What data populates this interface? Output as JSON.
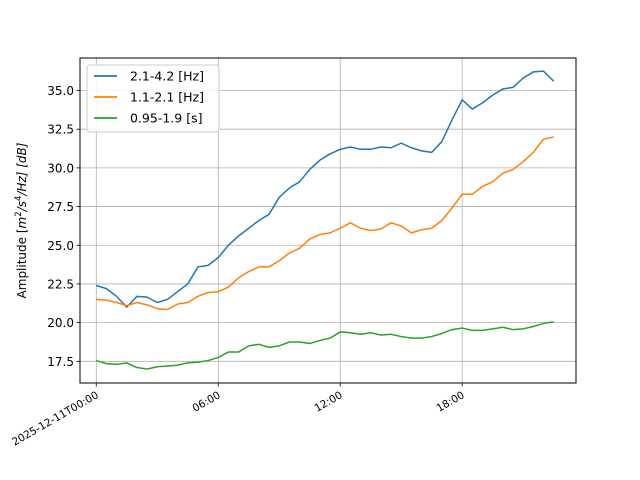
{
  "chart_data": {
    "type": "line",
    "title": "",
    "xlabel": "",
    "ylabel": "Amplitude [m²/s⁴/Hz] [dB]",
    "ylabel_parts": {
      "pre": "Amplitude [",
      "m": "m",
      "sup2": "2",
      "mid": "/s",
      "sup4": "4",
      "end": "/Hz] [dB]"
    },
    "x_start_label": "2025-12-11T00:00",
    "xlim": [
      -0.8,
      23.6
    ],
    "ylim": [
      16.1,
      37.1
    ],
    "x_ticks": [
      {
        "value": 0,
        "label": "2025-12-11T00:00"
      },
      {
        "value": 6,
        "label": "06:00"
      },
      {
        "value": 12,
        "label": "12:00"
      },
      {
        "value": 18,
        "label": "18:00"
      }
    ],
    "y_ticks": [
      {
        "value": 17.5,
        "label": "17.5"
      },
      {
        "value": 20.0,
        "label": "20.0"
      },
      {
        "value": 22.5,
        "label": "22.5"
      },
      {
        "value": 25.0,
        "label": "25.0"
      },
      {
        "value": 27.5,
        "label": "27.5"
      },
      {
        "value": 30.0,
        "label": "30.0"
      },
      {
        "value": 32.5,
        "label": "32.5"
      },
      {
        "value": 35.0,
        "label": "35.0"
      }
    ],
    "grid": true,
    "legend_position": "top-left",
    "x": [
      0,
      0.5,
      1,
      1.5,
      2,
      2.5,
      3,
      3.5,
      4,
      4.5,
      5,
      5.5,
      6,
      6.5,
      7,
      7.5,
      8,
      8.5,
      9,
      9.5,
      10,
      10.5,
      11,
      11.5,
      12,
      12.5,
      13,
      13.5,
      14,
      14.5,
      15,
      15.5,
      16,
      16.5,
      17,
      17.5,
      18,
      18.5,
      19,
      19.5,
      20,
      20.5,
      21,
      21.5,
      22,
      22.5
    ],
    "series": [
      {
        "name": "2.1-4.2 [Hz]",
        "color": "#1f77b4",
        "values": [
          22.4,
          22.2,
          21.7,
          21.0,
          21.7,
          21.65,
          21.3,
          21.5,
          22.0,
          22.5,
          23.6,
          23.7,
          24.2,
          25.0,
          25.6,
          26.1,
          26.6,
          27.0,
          28.1,
          28.7,
          29.1,
          29.9,
          30.5,
          30.9,
          31.2,
          31.35,
          31.2,
          31.2,
          31.35,
          31.3,
          31.6,
          31.3,
          31.1,
          31.0,
          31.7,
          33.1,
          34.4,
          33.8,
          34.2,
          34.7,
          35.1,
          35.2,
          35.8,
          36.2,
          36.25,
          35.6
        ]
      },
      {
        "name": "1.1-2.1 [Hz]",
        "color": "#ff7f0e",
        "values": [
          21.5,
          21.45,
          21.3,
          21.1,
          21.3,
          21.15,
          20.9,
          20.85,
          21.2,
          21.3,
          21.7,
          21.95,
          22.0,
          22.3,
          22.9,
          23.3,
          23.6,
          23.6,
          24.0,
          24.5,
          24.8,
          25.4,
          25.7,
          25.8,
          26.1,
          26.45,
          26.1,
          25.95,
          26.05,
          26.45,
          26.25,
          25.8,
          26.0,
          26.1,
          26.6,
          27.4,
          28.3,
          28.3,
          28.8,
          29.1,
          29.65,
          29.9,
          30.4,
          31.0,
          31.85,
          32.0
        ]
      },
      {
        "name": "0.95-1.9 [s]",
        "color": "#2ca02c",
        "values": [
          17.55,
          17.35,
          17.3,
          17.4,
          17.1,
          17.0,
          17.15,
          17.2,
          17.25,
          17.4,
          17.45,
          17.55,
          17.75,
          18.1,
          18.1,
          18.5,
          18.6,
          18.4,
          18.5,
          18.75,
          18.75,
          18.65,
          18.85,
          19.0,
          19.4,
          19.35,
          19.25,
          19.35,
          19.2,
          19.25,
          19.1,
          19.0,
          19.0,
          19.1,
          19.3,
          19.55,
          19.65,
          19.5,
          19.5,
          19.6,
          19.7,
          19.55,
          19.6,
          19.75,
          19.95,
          20.05
        ]
      }
    ]
  }
}
